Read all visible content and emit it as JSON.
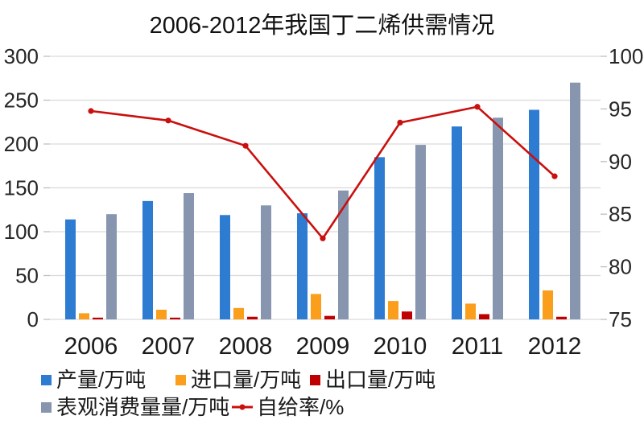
{
  "title": "2006-2012年我国丁二烯供需情况",
  "colors": {
    "production": "#2E7BD2",
    "imports": "#FA9E1C",
    "exports": "#C00000",
    "consumption": "#8795AE",
    "self_sufficiency": "#C9100E",
    "grid": "#D9D9D9",
    "tick": "#BFBFBF",
    "axis_text": "#262626"
  },
  "chart_data": {
    "type": "bar+line combo",
    "title": "2006-2012年我国丁二烯供需情况",
    "categories": [
      "2006",
      "2007",
      "2008",
      "2009",
      "2010",
      "2011",
      "2012"
    ],
    "series": [
      {
        "name": "产量/万吨",
        "type": "bar",
        "axis": "left",
        "color_key": "production",
        "values": [
          114,
          135,
          119,
          121,
          185,
          220,
          239
        ]
      },
      {
        "name": "进口量/万吨",
        "type": "bar",
        "axis": "left",
        "color_key": "imports",
        "values": [
          7,
          11,
          13,
          29,
          21,
          18,
          33
        ]
      },
      {
        "name": "出口量/万吨",
        "type": "bar",
        "axis": "left",
        "color_key": "exports",
        "values": [
          2,
          2,
          3,
          4,
          9,
          6,
          3
        ]
      },
      {
        "name": "表观消费量量/万吨",
        "type": "bar",
        "axis": "left",
        "color_key": "consumption",
        "values": [
          120,
          144,
          130,
          147,
          199,
          230,
          270
        ]
      },
      {
        "name": "自给率/%",
        "type": "line",
        "axis": "right",
        "color_key": "self_sufficiency",
        "values": [
          94.8,
          93.9,
          91.5,
          82.7,
          93.7,
          95.2,
          88.6
        ]
      }
    ],
    "left_axis": {
      "min": 0,
      "max": 300,
      "step": 50,
      "tick_labels": [
        "0",
        "50",
        "100",
        "150",
        "200",
        "250",
        "300"
      ]
    },
    "right_axis": {
      "min": 75,
      "max": 100,
      "step": 5,
      "tick_labels": [
        "75",
        "80",
        "85",
        "90",
        "95",
        "100"
      ]
    },
    "grid": true,
    "legend_position": "bottom"
  }
}
